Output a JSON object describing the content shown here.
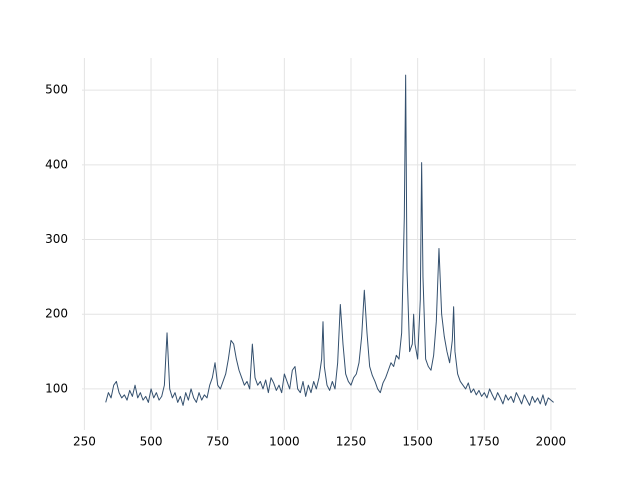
{
  "chart_data": {
    "type": "line",
    "x": [
      330,
      340,
      350,
      360,
      370,
      380,
      390,
      400,
      410,
      420,
      430,
      440,
      450,
      460,
      470,
      480,
      490,
      500,
      510,
      520,
      530,
      540,
      550,
      560,
      570,
      580,
      590,
      600,
      610,
      620,
      630,
      640,
      650,
      660,
      670,
      680,
      690,
      700,
      710,
      720,
      730,
      740,
      750,
      760,
      770,
      780,
      790,
      800,
      810,
      820,
      830,
      840,
      850,
      860,
      870,
      880,
      890,
      900,
      910,
      920,
      930,
      940,
      950,
      960,
      970,
      980,
      990,
      1000,
      1010,
      1020,
      1030,
      1040,
      1050,
      1060,
      1070,
      1080,
      1090,
      1100,
      1110,
      1120,
      1130,
      1140,
      1145,
      1150,
      1160,
      1170,
      1180,
      1190,
      1200,
      1210,
      1220,
      1230,
      1240,
      1250,
      1260,
      1270,
      1280,
      1290,
      1300,
      1310,
      1320,
      1330,
      1340,
      1350,
      1360,
      1370,
      1380,
      1390,
      1400,
      1410,
      1420,
      1430,
      1440,
      1450,
      1455,
      1460,
      1470,
      1480,
      1485,
      1490,
      1500,
      1510,
      1515,
      1520,
      1530,
      1540,
      1550,
      1560,
      1570,
      1580,
      1590,
      1600,
      1610,
      1620,
      1630,
      1635,
      1640,
      1650,
      1660,
      1670,
      1680,
      1690,
      1700,
      1710,
      1720,
      1730,
      1740,
      1750,
      1760,
      1770,
      1780,
      1790,
      1800,
      1810,
      1820,
      1830,
      1840,
      1850,
      1860,
      1870,
      1880,
      1890,
      1900,
      1910,
      1920,
      1930,
      1940,
      1950,
      1960,
      1970,
      1980,
      1990,
      2000,
      2010
    ],
    "series": [
      {
        "color": "#34506e",
        "values": [
          82,
          95,
          88,
          105,
          110,
          95,
          88,
          92,
          85,
          98,
          90,
          105,
          88,
          95,
          85,
          90,
          82,
          100,
          88,
          95,
          85,
          90,
          105,
          175,
          100,
          88,
          95,
          82,
          90,
          78,
          95,
          85,
          100,
          88,
          82,
          95,
          85,
          92,
          88,
          105,
          115,
          135,
          105,
          100,
          110,
          120,
          140,
          165,
          160,
          140,
          125,
          115,
          105,
          110,
          100,
          160,
          115,
          105,
          110,
          100,
          112,
          95,
          115,
          108,
          98,
          105,
          95,
          120,
          110,
          100,
          125,
          130,
          100,
          95,
          110,
          90,
          105,
          95,
          110,
          100,
          115,
          140,
          190,
          130,
          105,
          98,
          110,
          100,
          135,
          213,
          160,
          120,
          110,
          105,
          115,
          120,
          135,
          170,
          232,
          175,
          130,
          118,
          110,
          100,
          95,
          108,
          115,
          125,
          135,
          130,
          145,
          140,
          175,
          330,
          520,
          260,
          150,
          160,
          200,
          160,
          140,
          220,
          403,
          250,
          140,
          130,
          125,
          145,
          190,
          288,
          200,
          170,
          150,
          135,
          165,
          210,
          150,
          120,
          110,
          105,
          100,
          108,
          95,
          100,
          92,
          98,
          90,
          95,
          88,
          100,
          92,
          85,
          95,
          88,
          80,
          92,
          85,
          90,
          82,
          95,
          88,
          80,
          92,
          85,
          78,
          90,
          82,
          88,
          80,
          92,
          78,
          88,
          85,
          82
        ]
      }
    ],
    "xlim": [
      241,
      2094
    ],
    "ylim": [
      45,
      543
    ],
    "xticks": [
      250,
      500,
      750,
      1000,
      1250,
      1500,
      1750,
      2000
    ],
    "yticks": [
      100,
      200,
      300,
      400,
      500
    ],
    "grid": true
  }
}
